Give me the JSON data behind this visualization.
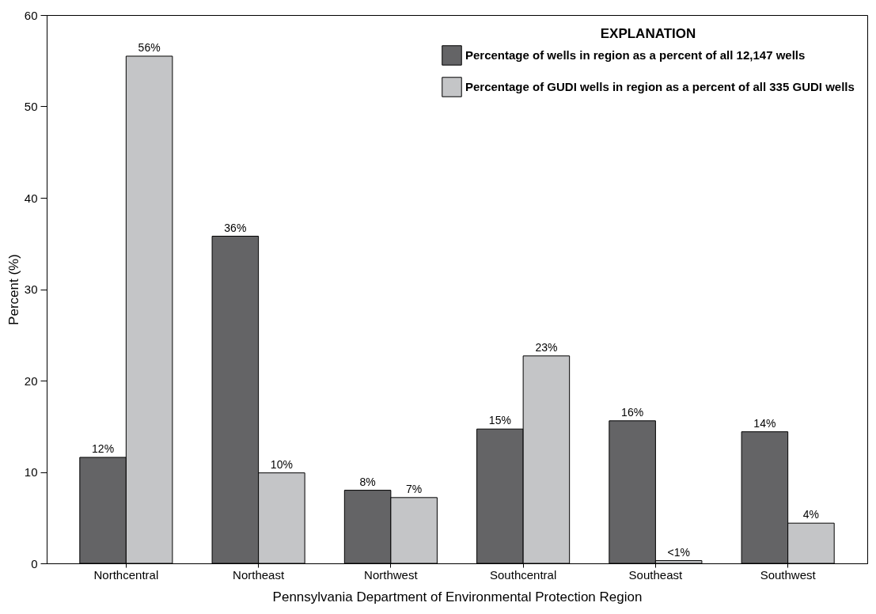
{
  "chart_data": {
    "type": "bar",
    "xlabel": "Pennsylvania Department of Environmental Protection Region",
    "ylabel": "Percent (%)",
    "legend_title": "EXPLANATION",
    "legend": "top right",
    "grid": false,
    "categories": [
      "Northcentral",
      "Northeast",
      "Northwest",
      "Southcentral",
      "Southeast",
      "Southwest"
    ],
    "series": [
      {
        "name": "Percentage of wells in region as a percent of all 12,147 wells",
        "color": "#646466",
        "values": [
          11.6,
          35.8,
          8.0,
          14.7,
          15.6,
          14.4
        ],
        "value_labels": [
          "12%",
          "36%",
          "8%",
          "15%",
          "16%",
          "14%"
        ]
      },
      {
        "name": "Percentage of GUDI wells in region as a percent of all 335 GUDI wells",
        "color": "#c4c5c7",
        "values": [
          55.5,
          9.9,
          7.2,
          22.7,
          0.3,
          4.4
        ],
        "value_labels": [
          "56%",
          "10%",
          "7%",
          "23%",
          "<1%",
          "4%"
        ]
      }
    ],
    "ylim": [
      0,
      60
    ],
    "yticks": [
      0,
      10,
      20,
      30,
      40,
      50,
      60
    ]
  }
}
